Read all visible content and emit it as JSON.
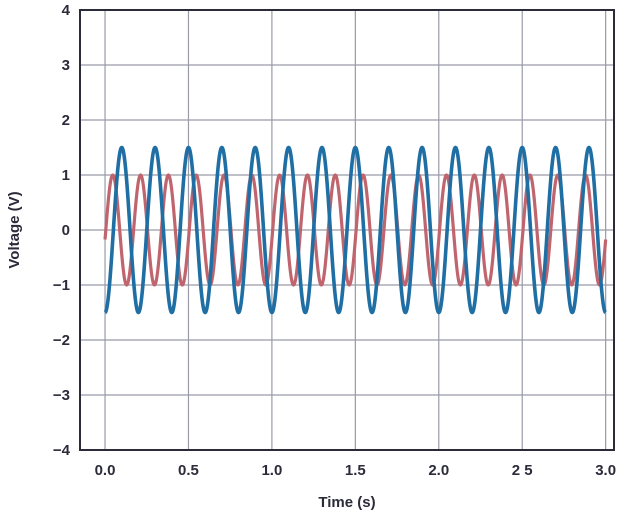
{
  "chart_data": {
    "type": "line",
    "title": "",
    "xlabel": "Time (s)",
    "ylabel": "Voltage (V)",
    "xlim": [
      -0.15,
      3.05
    ],
    "ylim": [
      -4,
      4
    ],
    "xticks": [
      0.0,
      0.5,
      1.0,
      1.5,
      2.0,
      2.5,
      3.0
    ],
    "xtick_labels": [
      "0.0",
      "0.5",
      "1.0",
      "1.5",
      "2.0",
      "2 5",
      "3.0"
    ],
    "yticks": [
      4,
      3,
      2,
      1,
      0,
      -1,
      -2,
      -3,
      -4
    ],
    "ytick_labels": [
      "4",
      "3",
      "2",
      "1",
      "0",
      "−1",
      "−2",
      "−3",
      "−4"
    ],
    "grid": true,
    "legend": "none",
    "series": [
      {
        "color": "#c0656e",
        "amplitude": 1.0,
        "frequency_hz": 6.0,
        "phase_deg": -10,
        "t_start": 0.0,
        "t_end": 3.0
      },
      {
        "color": "#1f6fa5",
        "amplitude": 1.5,
        "frequency_hz": 5.0,
        "phase_deg": -90,
        "t_start": 0.0,
        "t_end": 3.0
      }
    ],
    "colors": {
      "axis": "#2b2b3a",
      "grid": "#9a9aa8",
      "text": "#2b2b3a"
    }
  }
}
